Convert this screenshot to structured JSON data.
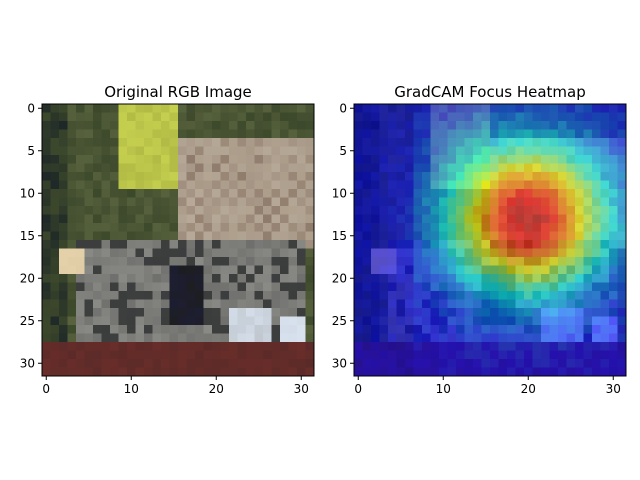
{
  "chart_data": [
    {
      "type": "heatmap",
      "title": "Original RGB Image",
      "xlabel": "",
      "ylabel": "",
      "grid_size": [
        32,
        32
      ],
      "xlim": [
        -0.5,
        31.5
      ],
      "ylim": [
        31.5,
        -0.5
      ],
      "x_ticks": [
        0,
        10,
        20,
        30
      ],
      "y_ticks": [
        0,
        5,
        10,
        15,
        20,
        25,
        30
      ],
      "image_description_only_for_rendering": "low-resolution photo, green background, textured tan animal, grey metal vehicle",
      "palette": {
        "background_green": "#3e4a2c",
        "highlight_yellow": "#c8d250",
        "animal_tan": "#b8aa98",
        "vehicle_grey": "#8a8a86",
        "dark_shadow": "#1c1e20",
        "ground_red": "#6a2e2a",
        "bright_spot": "#d8e2ee"
      }
    },
    {
      "type": "heatmap",
      "title": "GradCAM Focus Heatmap",
      "xlabel": "",
      "ylabel": "",
      "grid_size": [
        32,
        32
      ],
      "xlim": [
        -0.5,
        31.5
      ],
      "ylim": [
        31.5,
        -0.5
      ],
      "x_ticks": [
        0,
        10,
        20,
        30
      ],
      "y_ticks": [
        0,
        5,
        10,
        15,
        20,
        25,
        30
      ],
      "colormap": "jet",
      "peak_cell": [
        20,
        13
      ],
      "colormap_stops": [
        "#000080",
        "#0000ff",
        "#00ffff",
        "#ffff00",
        "#ff0000",
        "#800000"
      ]
    }
  ]
}
